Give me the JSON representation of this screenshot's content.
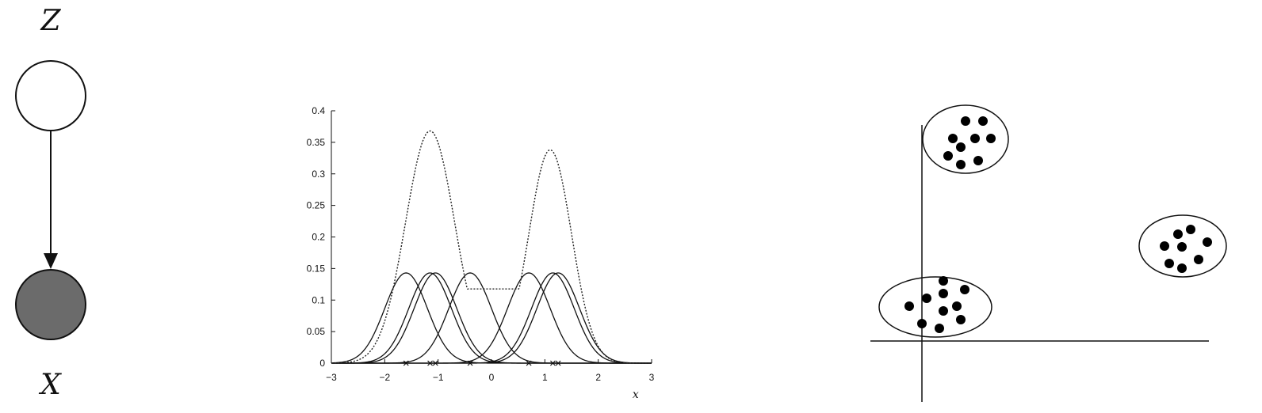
{
  "graphical_model": {
    "latent_label": "Z",
    "observed_label": "X",
    "colors": {
      "latent_fill": "#ffffff",
      "observed_fill": "#6b6b6b",
      "stroke": "#111111"
    }
  },
  "chart_data": {
    "type": "line",
    "xlabel": "x",
    "ylabel": "",
    "xlim": [
      -3,
      3
    ],
    "ylim": [
      0,
      0.4
    ],
    "x_ticks": [
      "−3",
      "−2",
      "−1",
      "0",
      "1",
      "2",
      "3"
    ],
    "y_ticks": [
      "0",
      "0.05",
      "0.1",
      "0.15",
      "0.2",
      "0.25",
      "0.3",
      "0.35",
      "0.4"
    ],
    "kernel_centers": [
      -1.6,
      -1.15,
      -1.05,
      -0.4,
      0.7,
      1.15,
      1.25
    ],
    "kernel_peak": 0.143,
    "kernel_sigma": 0.4,
    "sum_curve_peaks": [
      {
        "x": -1.15,
        "y": 0.38
      },
      {
        "x": 1.1,
        "y": 0.35
      }
    ],
    "sum_curve_valley": {
      "x": 0.1,
      "y": 0.12
    },
    "sample_marker": "x",
    "grid": false
  },
  "cluster_plot": {
    "clusters": [
      {
        "name": "top",
        "points": 10
      },
      {
        "name": "right",
        "points": 9
      },
      {
        "name": "bottom-left",
        "points": 11
      }
    ]
  }
}
